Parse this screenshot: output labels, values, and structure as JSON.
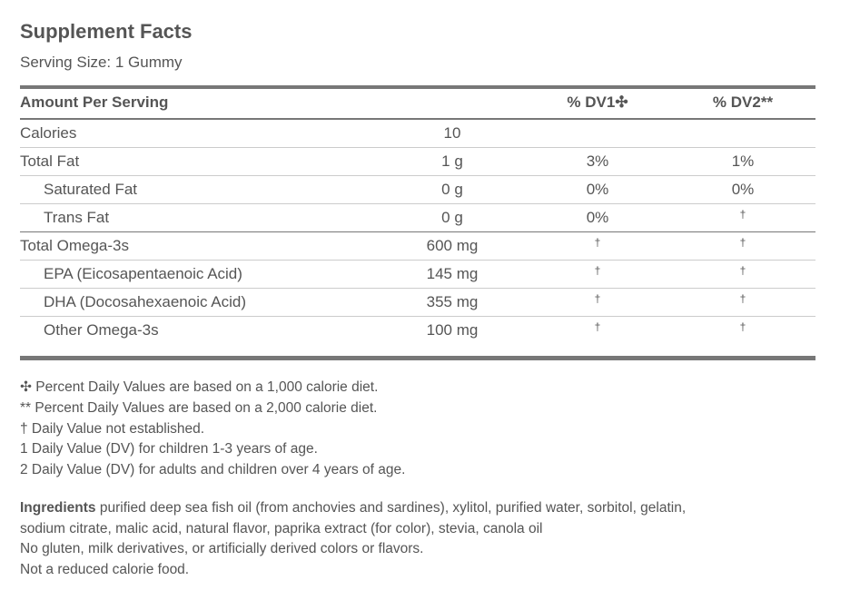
{
  "header": {
    "title": "Supplement Facts",
    "serving": "Serving Size: 1 Gummy"
  },
  "table": {
    "columns": [
      "Amount Per Serving",
      "% DV1✣",
      "% DV2**"
    ],
    "groups": [
      {
        "name": "Calories",
        "amount": "10"
      },
      {
        "name": "Total Fat",
        "amount": "1 g",
        "dv1": "3%",
        "dv2": "1%",
        "children": [
          {
            "name": "Saturated Fat",
            "amount": "0 g",
            "dv1": "0%",
            "dv2": "0%"
          },
          {
            "name": "Trans Fat",
            "amount": "0 g",
            "dv1": "0%",
            "dv2": "†"
          }
        ]
      },
      {
        "name": "Total Omega-3s",
        "amount": "600 mg",
        "dv1": "†",
        "dv2": "†",
        "children": [
          {
            "name": "EPA (Eicosapentaenoic Acid)",
            "amount": "145 mg",
            "dv1": "†",
            "dv2": "†"
          },
          {
            "name": "DHA (Docosahexaenoic Acid)",
            "amount": "355 mg",
            "dv1": "†",
            "dv2": "†"
          },
          {
            "name": "Other Omega-3s",
            "amount": "100 mg",
            "dv1": "†",
            "dv2": "†"
          }
        ]
      }
    ]
  },
  "footnotes": [
    "✣ Percent Daily Values are based on a 1,000 calorie diet.",
    "** Percent Daily Values are based on a 2,000 calorie diet.",
    "† Daily Value not established.",
    "1 Daily Value (DV) for children 1-3 years of age.",
    "2 Daily Value (DV) for adults and children over 4 years of age."
  ],
  "ingredients": {
    "label": "Ingredients",
    "lines": [
      "purified deep sea fish oil (from anchovies and sardines), xylitol, purified water, sorbitol, gelatin,",
      "sodium citrate, malic acid, natural flavor, paprika extract (for color), stevia, canola oil"
    ]
  },
  "notes": [
    "No gluten, milk derivatives, or artificially derived colors or flavors.",
    "Not a reduced calorie food."
  ]
}
